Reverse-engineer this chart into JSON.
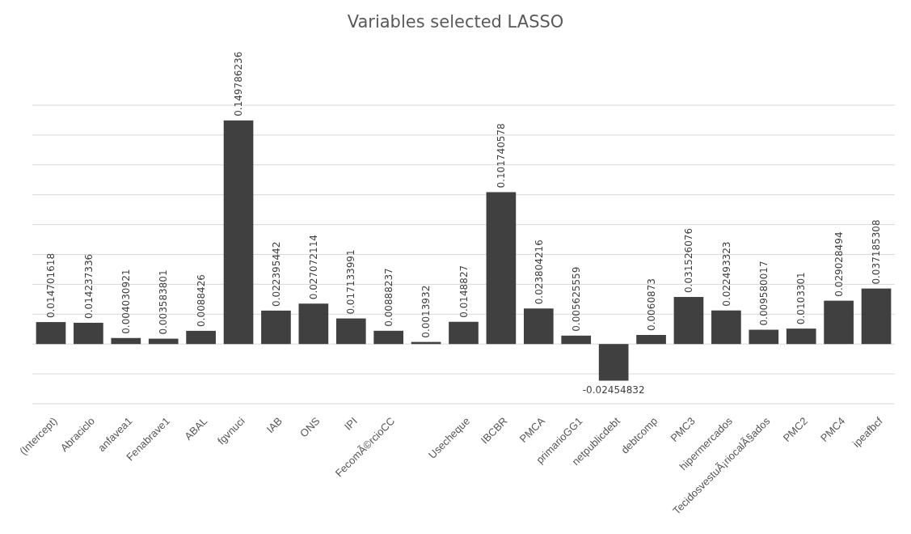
{
  "chart_data": {
    "type": "bar",
    "title": "Variables selected LASSO",
    "categories": [
      "(Intercept)",
      "Abraciclo",
      "anfavea1",
      "Fenabrave1",
      "ABAL",
      "fgvnuci",
      "IAB",
      "ONS",
      "IPI",
      "FecomÃ©rcioCC",
      null,
      "Usecheque",
      "IBCBR",
      "PMCA",
      "primarioGG1",
      "netpublicdebt",
      "debtcomp",
      "PMC3",
      "hipermercados",
      "TecidosvestuÃ¡riocalÃ§ados",
      "PMC2",
      "PMC4",
      "ipeafbcf"
    ],
    "values": [
      0.014701618,
      0.014237336,
      0.004030921,
      0.003583801,
      0.0088426,
      0.149786236,
      0.022395442,
      0.027072114,
      0.017133991,
      0.00888237,
      0.0013932,
      0.0148827,
      0.101740578,
      0.023804216,
      0.005625559,
      -0.02454832,
      0.0060873,
      0.031526076,
      0.022493323,
      0.009580017,
      0.0103301,
      0.029028494,
      0.037185308
    ],
    "color": "#404040",
    "ylim": [
      -0.04,
      0.16
    ],
    "yticks": [
      {
        "value": -0.04,
        "label": null
      },
      {
        "value": -0.02,
        "label": null
      },
      {
        "value": 0,
        "label": null
      },
      {
        "value": 0.02,
        "label": null
      },
      {
        "value": 0.04,
        "label": null
      },
      {
        "value": 0.06,
        "label": null
      },
      {
        "value": 0.08,
        "label": null
      },
      {
        "value": 0.1,
        "label": null
      },
      {
        "value": 0.12,
        "label": null
      },
      {
        "value": 0.14,
        "label": null
      },
      {
        "value": 0.16,
        "label": null
      }
    ],
    "tick_labels": "x",
    "grid": "y",
    "data_labels": true
  }
}
